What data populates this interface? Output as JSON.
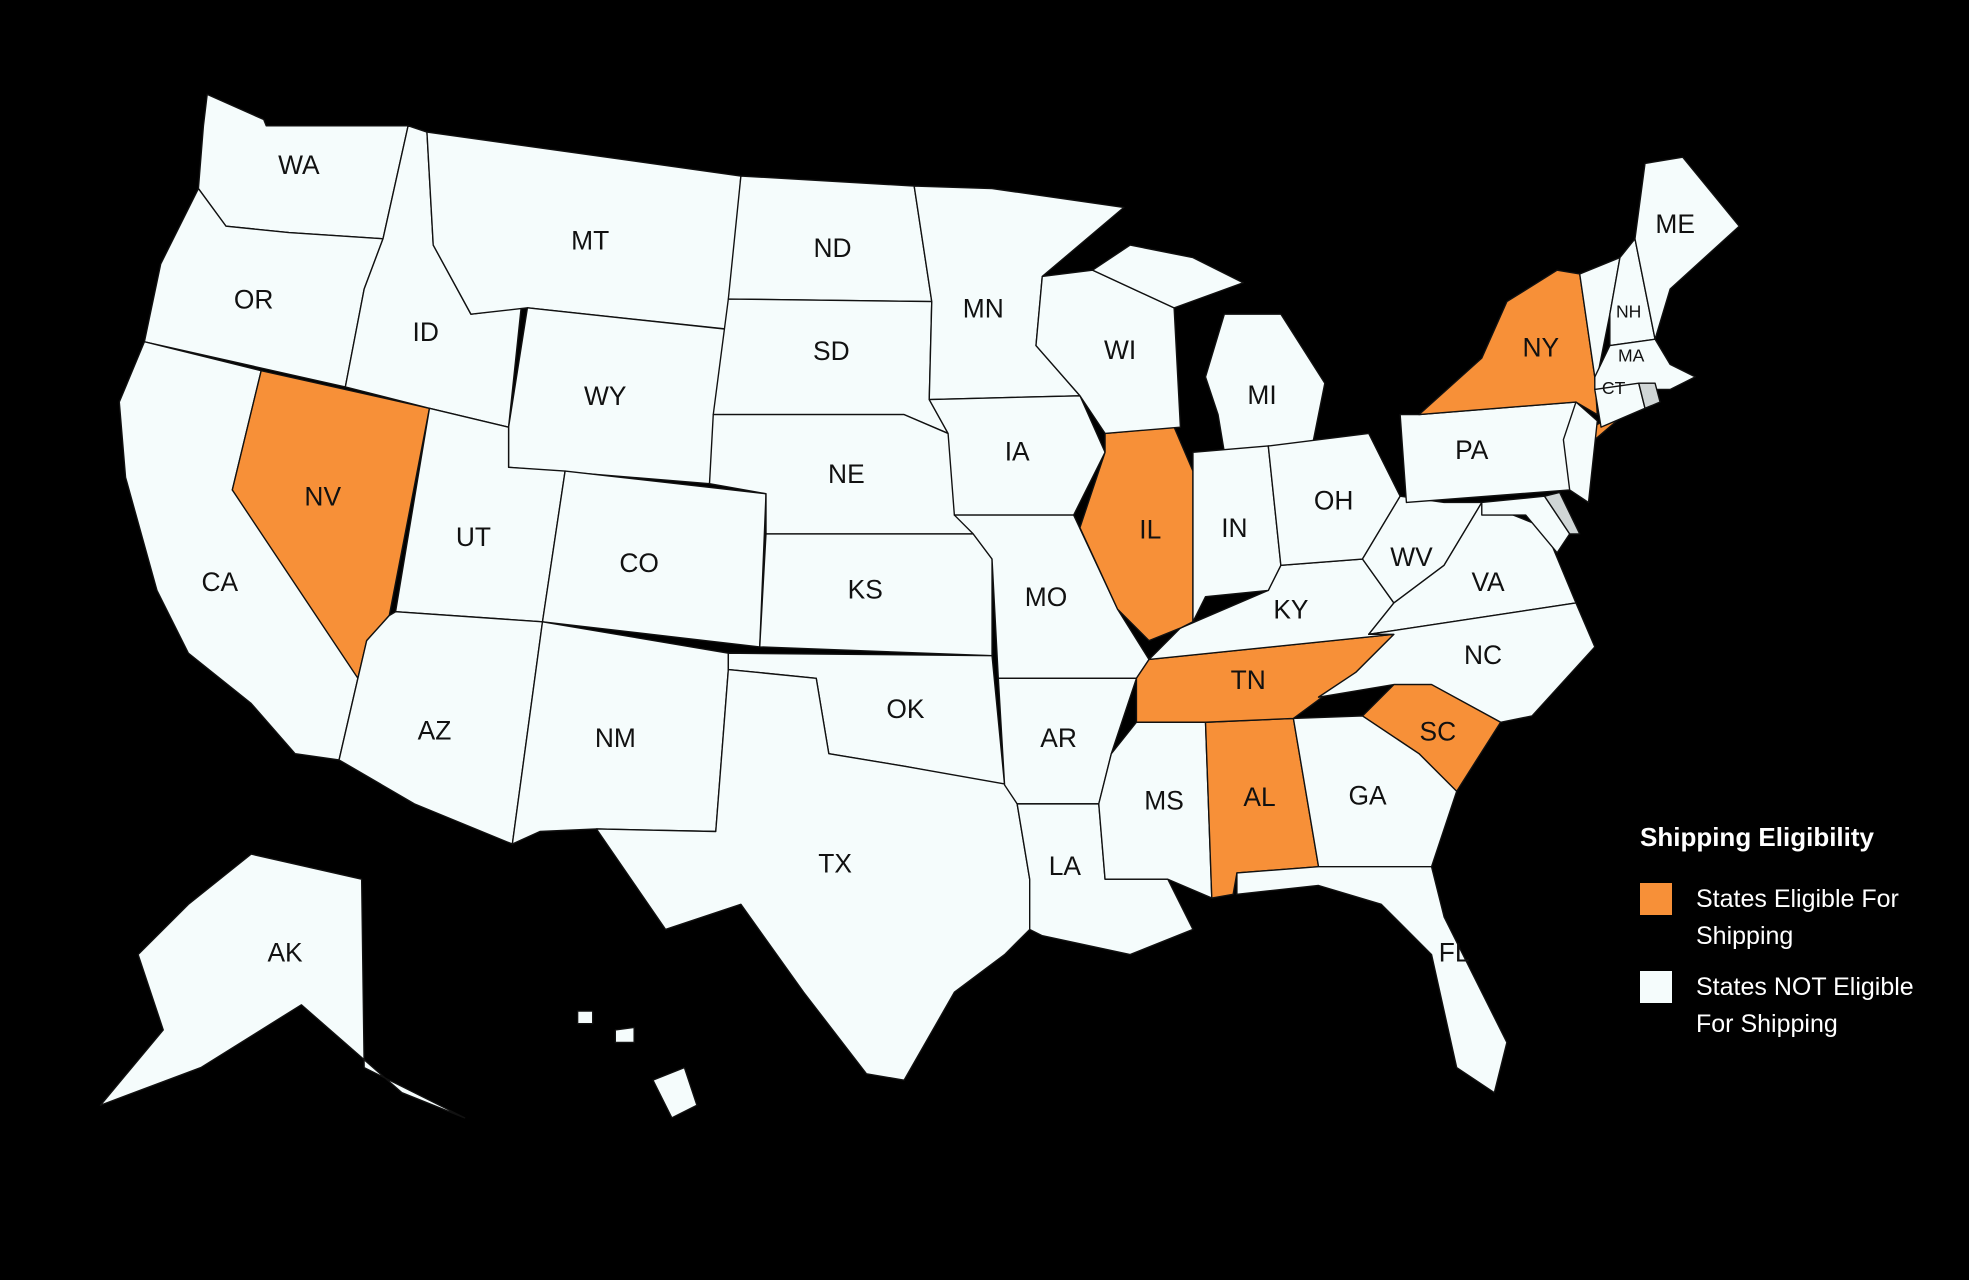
{
  "legend": {
    "title": "Shipping Eligibility",
    "items": [
      {
        "label": "States Eligible For Shipping",
        "color": "#F79038"
      },
      {
        "label": "States NOT Eligible For Shipping",
        "color": "#F5FCFC"
      }
    ]
  },
  "colors": {
    "eligible": "#F79038",
    "not_eligible": "#F5FCFC",
    "unlabeled_small": "#D0D6D6",
    "background": "#000000"
  },
  "states": [
    {
      "code": "WA",
      "eligible": false
    },
    {
      "code": "OR",
      "eligible": false
    },
    {
      "code": "CA",
      "eligible": false
    },
    {
      "code": "NV",
      "eligible": true
    },
    {
      "code": "ID",
      "eligible": false
    },
    {
      "code": "MT",
      "eligible": false
    },
    {
      "code": "WY",
      "eligible": false
    },
    {
      "code": "UT",
      "eligible": false
    },
    {
      "code": "CO",
      "eligible": false
    },
    {
      "code": "AZ",
      "eligible": false
    },
    {
      "code": "NM",
      "eligible": false
    },
    {
      "code": "ND",
      "eligible": false
    },
    {
      "code": "SD",
      "eligible": false
    },
    {
      "code": "NE",
      "eligible": false
    },
    {
      "code": "KS",
      "eligible": false
    },
    {
      "code": "OK",
      "eligible": false
    },
    {
      "code": "TX",
      "eligible": false
    },
    {
      "code": "MN",
      "eligible": false
    },
    {
      "code": "IA",
      "eligible": false
    },
    {
      "code": "MO",
      "eligible": false
    },
    {
      "code": "AR",
      "eligible": false
    },
    {
      "code": "LA",
      "eligible": false
    },
    {
      "code": "MS",
      "eligible": false
    },
    {
      "code": "AL",
      "eligible": true
    },
    {
      "code": "TN",
      "eligible": true
    },
    {
      "code": "KY",
      "eligible": false
    },
    {
      "code": "IL",
      "eligible": true
    },
    {
      "code": "WI",
      "eligible": false
    },
    {
      "code": "MI",
      "eligible": false
    },
    {
      "code": "IN",
      "eligible": false
    },
    {
      "code": "OH",
      "eligible": false
    },
    {
      "code": "WV",
      "eligible": false
    },
    {
      "code": "VA",
      "eligible": false
    },
    {
      "code": "NC",
      "eligible": false
    },
    {
      "code": "SC",
      "eligible": true
    },
    {
      "code": "GA",
      "eligible": false
    },
    {
      "code": "FL",
      "eligible": false
    },
    {
      "code": "PA",
      "eligible": false
    },
    {
      "code": "NY",
      "eligible": true
    },
    {
      "code": "NJ",
      "eligible": false
    },
    {
      "code": "MD",
      "eligible": false
    },
    {
      "code": "DE",
      "eligible": false
    },
    {
      "code": "VT",
      "eligible": false
    },
    {
      "code": "NH",
      "eligible": false
    },
    {
      "code": "ME",
      "eligible": false
    },
    {
      "code": "MA",
      "eligible": false
    },
    {
      "code": "CT",
      "eligible": false
    },
    {
      "code": "RI",
      "eligible": false
    },
    {
      "code": "AK",
      "eligible": false
    },
    {
      "code": "HI",
      "eligible": false
    }
  ],
  "unlabeled": [
    "NJ",
    "MD",
    "DE",
    "VT",
    "RI",
    "HI"
  ]
}
